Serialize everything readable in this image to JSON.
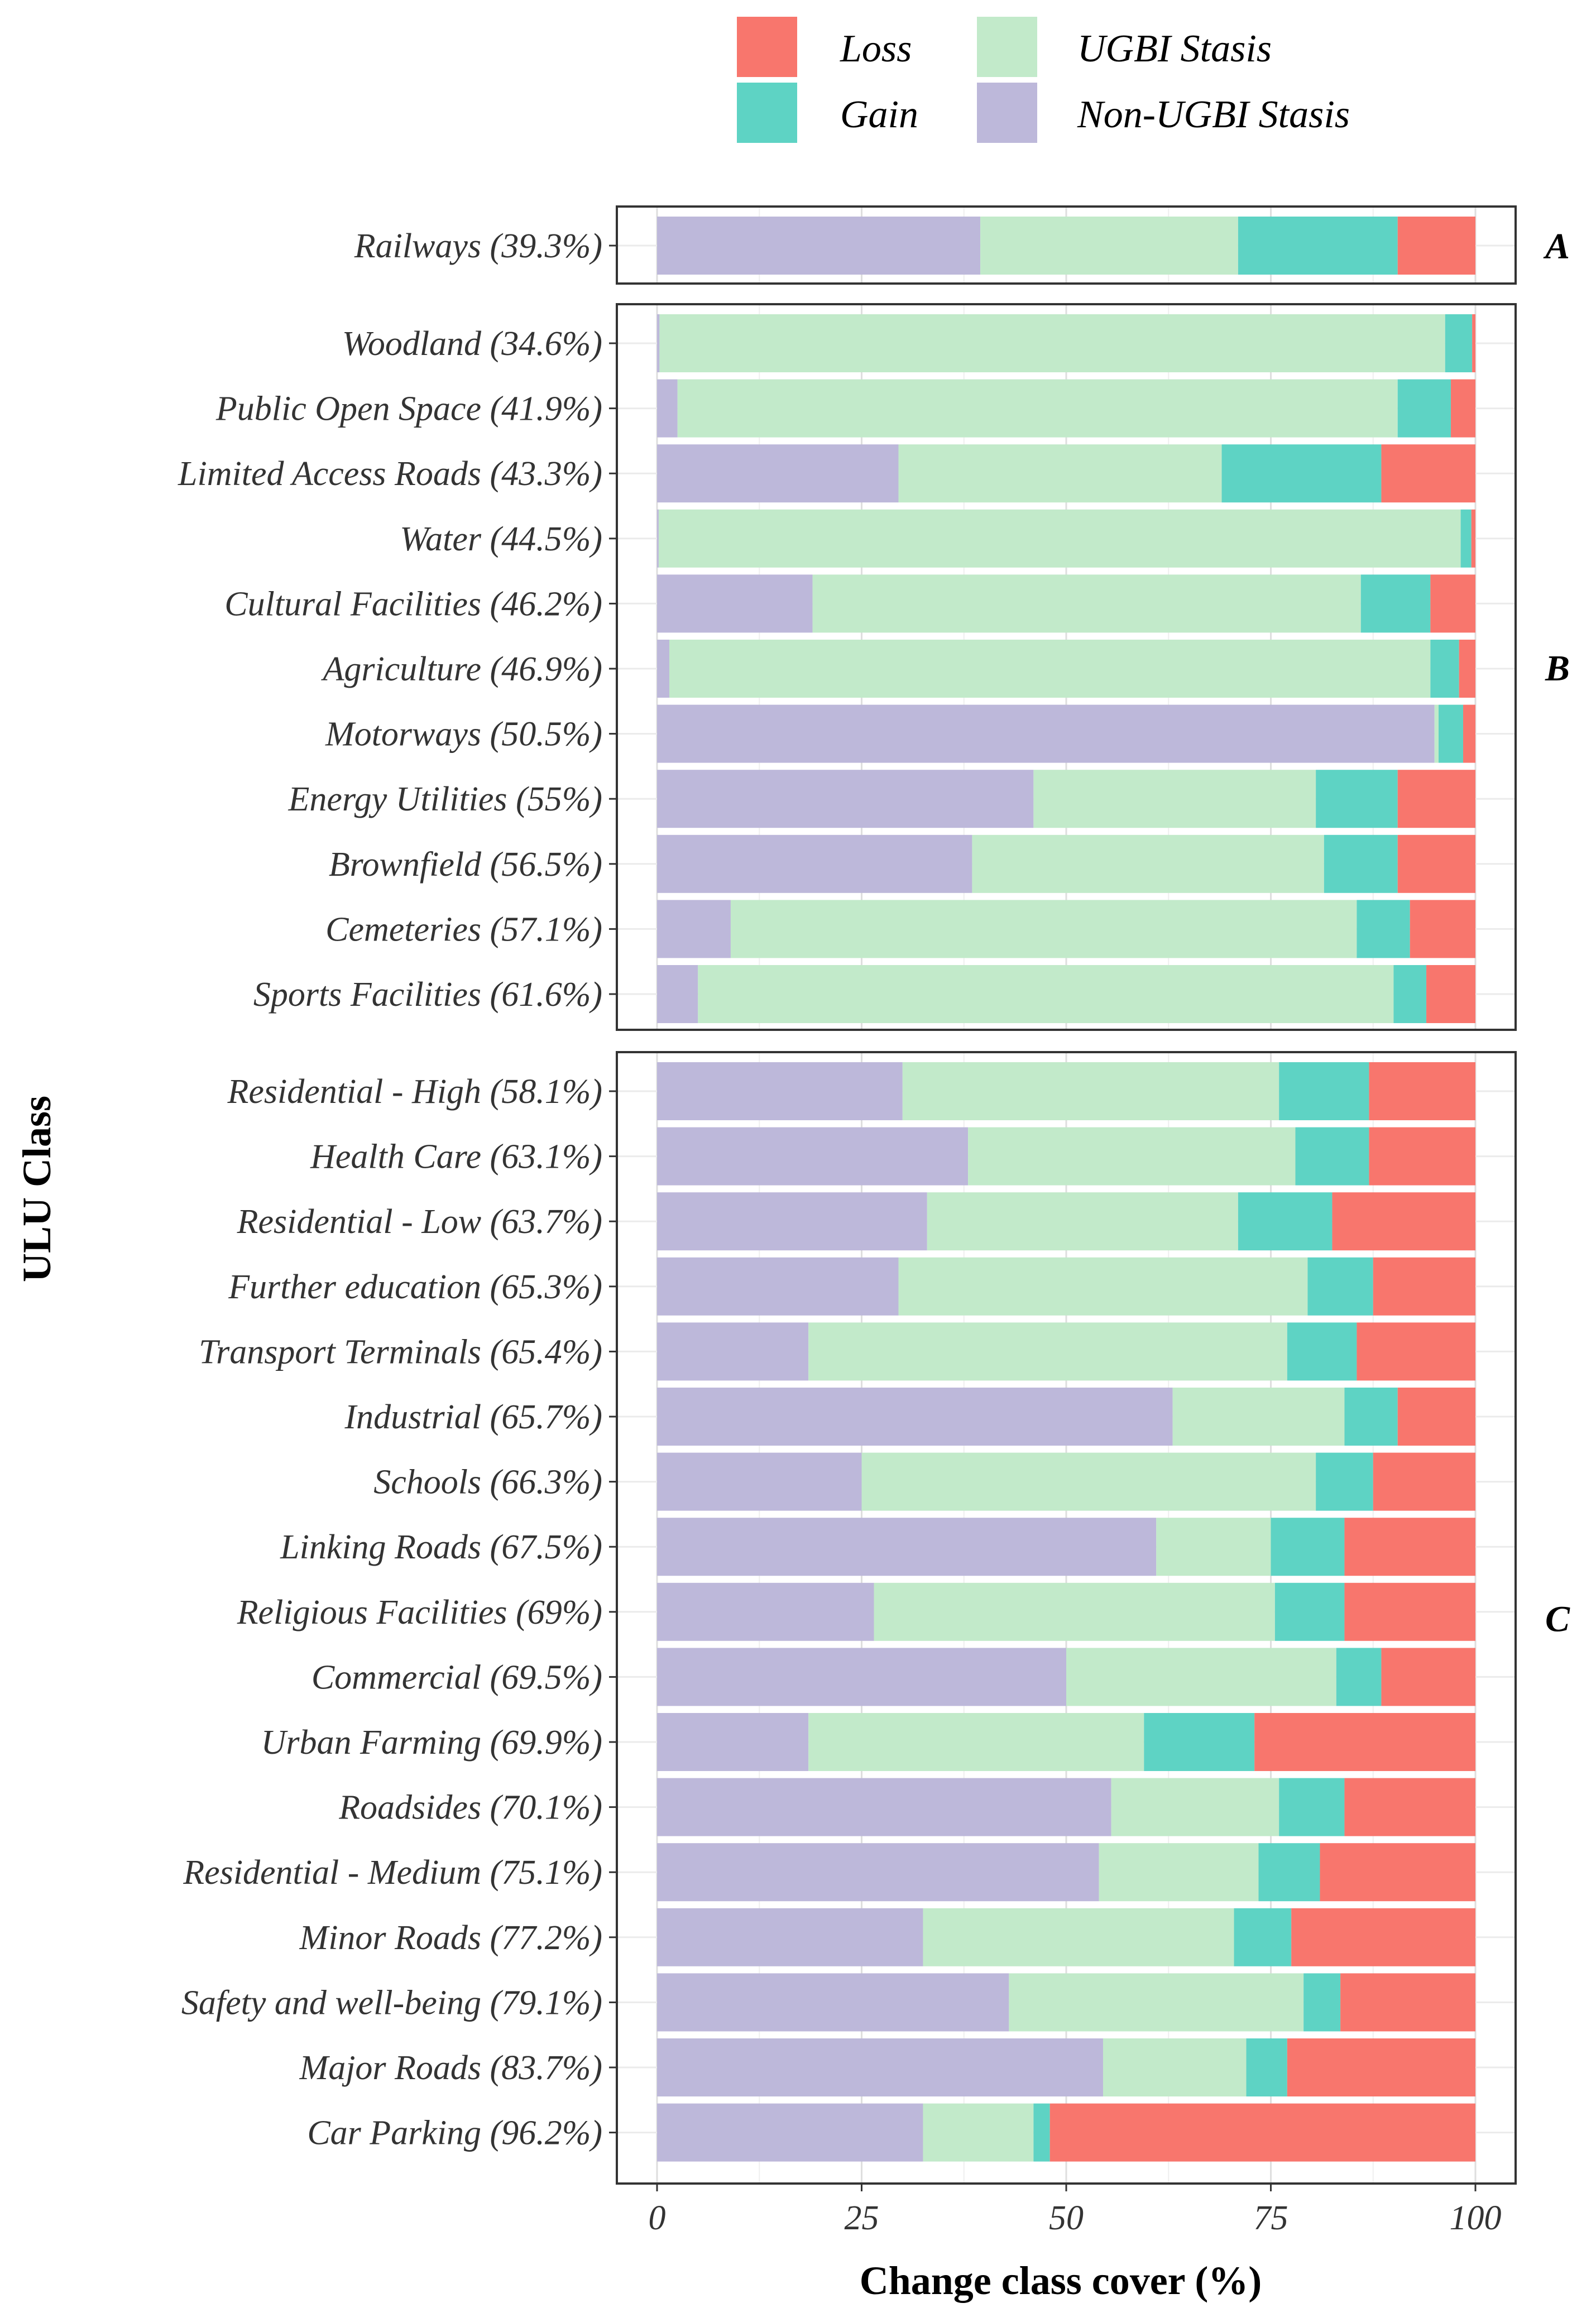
{
  "chart_data": {
    "type": "bar",
    "orientation": "horizontal-stacked",
    "xlabel": "Change class cover (%)",
    "ylabel": "ULU Class",
    "xlim": [
      0,
      100
    ],
    "xticks": [
      "0",
      "25",
      "50",
      "75",
      "100"
    ],
    "legend_position": "top",
    "stack_order": [
      "Non-UGBI Stasis",
      "UGBI Stasis",
      "Gain",
      "Loss"
    ],
    "series": [
      {
        "name": "Loss",
        "color": "#F8766D"
      },
      {
        "name": "UGBI Stasis",
        "color": "#C2EACA"
      },
      {
        "name": "Gain",
        "color": "#5ED3C4"
      },
      {
        "name": "Non-UGBI Stasis",
        "color": "#BDB8DA"
      }
    ],
    "panels": [
      {
        "tag": "A",
        "categories": [
          "Railways (39.3%)"
        ],
        "non_ugbi_stasis": [
          39.5
        ],
        "ugbi_stasis": [
          31.5
        ],
        "gain": [
          19.5
        ],
        "loss": [
          9.5
        ]
      },
      {
        "tag": "B",
        "categories": [
          "Woodland (34.6%)",
          "Public Open Space (41.9%)",
          "Limited Access Roads (43.3%)",
          "Water (44.5%)",
          "Cultural Facilities (46.2%)",
          "Agriculture (46.9%)",
          "Motorways (50.5%)",
          "Energy Utilities (55%)",
          "Brownfield (56.5%)",
          "Cemeteries (57.1%)",
          "Sports Facilities (61.6%)"
        ],
        "non_ugbi_stasis": [
          0.3,
          2.5,
          29.5,
          0.2,
          19,
          1.5,
          95,
          46,
          38.5,
          9,
          5
        ],
        "ugbi_stasis": [
          96,
          88,
          39.5,
          98,
          67,
          93,
          0.5,
          34.5,
          43,
          76.5,
          85
        ],
        "gain": [
          3.3,
          6.5,
          19.5,
          1.3,
          8.5,
          3.5,
          3,
          10,
          9,
          6.5,
          4
        ],
        "loss": [
          0.4,
          3,
          11.5,
          0.5,
          5.5,
          2,
          1.5,
          9.5,
          9.5,
          8,
          6
        ]
      },
      {
        "tag": "C",
        "categories": [
          "Residential - High (58.1%)",
          "Health Care (63.1%)",
          "Residential - Low (63.7%)",
          "Further education (65.3%)",
          "Transport Terminals (65.4%)",
          "Industrial (65.7%)",
          "Schools (66.3%)",
          "Linking Roads (67.5%)",
          "Religious Facilities (69%)",
          "Commercial (69.5%)",
          "Urban Farming (69.9%)",
          "Roadsides (70.1%)",
          "Residential - Medium (75.1%)",
          "Minor Roads (77.2%)",
          "Safety and well-being (79.1%)",
          "Major Roads (83.7%)",
          "Car Parking (96.2%)"
        ],
        "non_ugbi_stasis": [
          30,
          38,
          33,
          29.5,
          18.5,
          63,
          25,
          61,
          26.5,
          50,
          18.5,
          55.5,
          54,
          32.5,
          43,
          54.5,
          32.5
        ],
        "ugbi_stasis": [
          46,
          40,
          38,
          50,
          58.5,
          21,
          55.5,
          14,
          49,
          33,
          41,
          20.5,
          19.5,
          38,
          36,
          17.5,
          13.5
        ],
        "gain": [
          11,
          9,
          11.5,
          8,
          8.5,
          6.5,
          7,
          9,
          8.5,
          5.5,
          13.5,
          8,
          7.5,
          7,
          4.5,
          5,
          2
        ],
        "loss": [
          13,
          13,
          17.5,
          12.5,
          14.5,
          9.5,
          12.5,
          16,
          16,
          11.5,
          27,
          16,
          19,
          22.5,
          16.5,
          23,
          52
        ]
      }
    ]
  }
}
